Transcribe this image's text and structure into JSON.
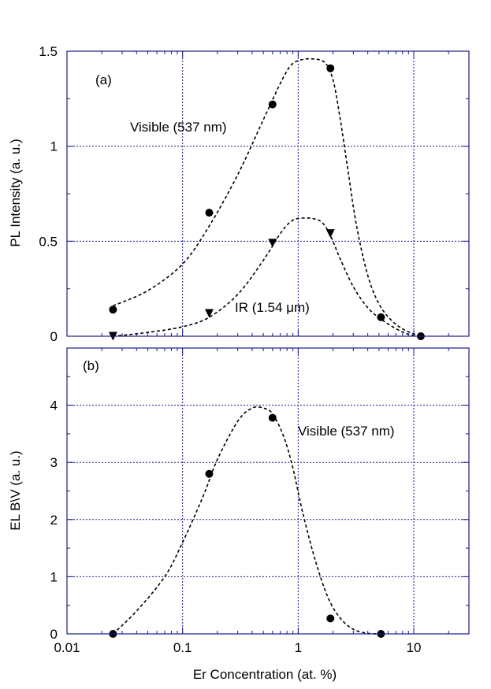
{
  "chart_data": [
    {
      "type": "scatter",
      "panel_label": "(a)",
      "ylabel": "PL Intensity (a. u.)",
      "xscale": "log",
      "xlim": [
        0.01,
        30
      ],
      "ylim": [
        0,
        1.5
      ],
      "y_ticks": [
        0,
        0.5,
        1,
        1.5
      ],
      "y_tick_labels": [
        "0",
        "0.5",
        "1",
        "1.5"
      ],
      "grid": true,
      "series": [
        {
          "name": "Visible (537 nm)",
          "marker": "circle",
          "x": [
            0.025,
            0.17,
            0.6,
            1.9,
            5.2,
            11.5
          ],
          "y": [
            0.14,
            0.65,
            1.22,
            1.41,
            0.1,
            0.0
          ],
          "fit": {
            "x": [
              0.025,
              0.05,
              0.1,
              0.17,
              0.3,
              0.5,
              0.7,
              0.85,
              1.0,
              1.3,
              1.7,
              2.0,
              2.3,
              2.7,
              3.2,
              4.0,
              5.0,
              6.5,
              8.5,
              11.5
            ],
            "y": [
              0.16,
              0.24,
              0.38,
              0.58,
              0.85,
              1.14,
              1.33,
              1.42,
              1.45,
              1.46,
              1.44,
              1.35,
              1.15,
              0.87,
              0.58,
              0.32,
              0.17,
              0.08,
              0.03,
              0.0
            ]
          }
        },
        {
          "name": "IR (1.54 μm)",
          "marker": "triangle-down",
          "x": [
            0.025,
            0.17,
            0.6,
            1.9
          ],
          "y": [
            0.0,
            0.12,
            0.49,
            0.54
          ],
          "fit": {
            "x": [
              0.025,
              0.05,
              0.1,
              0.17,
              0.3,
              0.5,
              0.7,
              0.85,
              1.0,
              1.3,
              1.6,
              1.9,
              2.3,
              3.0,
              4.0,
              5.2,
              7.0,
              9.0,
              11.5
            ],
            "y": [
              0.0,
              0.02,
              0.05,
              0.1,
              0.22,
              0.4,
              0.54,
              0.6,
              0.62,
              0.62,
              0.6,
              0.53,
              0.41,
              0.26,
              0.15,
              0.09,
              0.04,
              0.01,
              0.0
            ]
          }
        }
      ],
      "annotations": [
        "Visible (537 nm)",
        "IR (1.54 μm)"
      ]
    },
    {
      "type": "scatter",
      "panel_label": "(b)",
      "ylabel": "EL B\\V (a. u.)",
      "xlabel": "Er Concentration (at. %)",
      "xscale": "log",
      "xlim": [
        0.01,
        30
      ],
      "x_ticks": [
        0.01,
        0.1,
        1,
        10
      ],
      "x_tick_labels": [
        "0.01",
        "0.1",
        "1",
        "10"
      ],
      "ylim": [
        0,
        5
      ],
      "y_ticks": [
        0,
        1,
        2,
        3,
        4
      ],
      "y_tick_labels": [
        "0",
        "1",
        "2",
        "3",
        "4"
      ],
      "grid": true,
      "series": [
        {
          "name": "Visible (537 nm)",
          "marker": "circle",
          "x": [
            0.025,
            0.17,
            0.6,
            1.9,
            5.2
          ],
          "y": [
            0.0,
            2.8,
            3.78,
            0.27,
            0.0
          ],
          "fit": {
            "x": [
              0.025,
              0.04,
              0.07,
              0.1,
              0.15,
              0.2,
              0.3,
              0.4,
              0.5,
              0.6,
              0.75,
              0.9,
              1.1,
              1.4,
              1.8,
              2.3,
              3.0,
              4.0,
              5.2
            ],
            "y": [
              0.0,
              0.4,
              1.0,
              1.6,
              2.4,
              3.05,
              3.72,
              3.95,
              3.95,
              3.85,
              3.45,
              2.9,
              2.1,
              1.3,
              0.65,
              0.28,
              0.08,
              0.01,
              0.0
            ]
          }
        }
      ],
      "annotations": [
        "Visible (537 nm)"
      ]
    }
  ]
}
